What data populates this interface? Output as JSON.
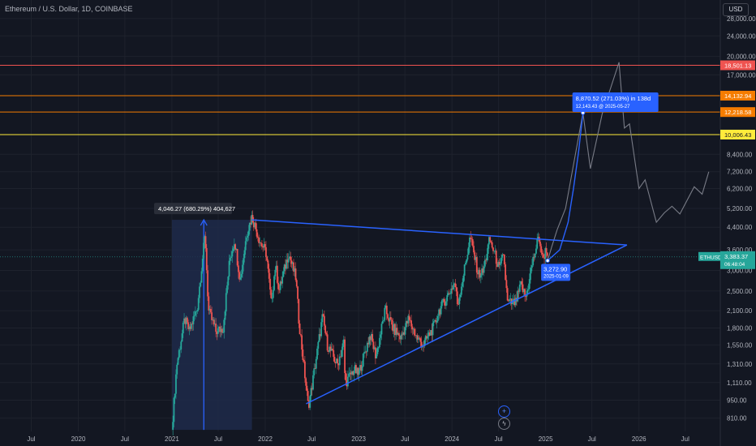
{
  "header": {
    "symbol_title": "Ethereum / U.S. Dollar, 1D, COINBASE",
    "currency": "USD"
  },
  "colors": {
    "background": "#131722",
    "candle_up": "#26a69a",
    "candle_down": "#ef5350",
    "trendline": "#2962ff",
    "projection": "#787b86",
    "range_fill": "#1e2a4a",
    "level_red": "#ef5350",
    "level_orange": "#f57c00",
    "level_yellow": "#ffeb3b"
  },
  "chart_data": {
    "type": "line",
    "title": "Ethereum / U.S. Dollar, 1D, COINBASE",
    "y_scale": "log",
    "ylim": [
      720,
      33000
    ],
    "xlim": [
      "2019-03-01",
      "2026-11-15"
    ],
    "y_ticks": [
      28000,
      24000,
      20000,
      17000,
      8400,
      7200,
      6200,
      5200,
      4400,
      3600,
      3000,
      2500,
      2100,
      1800,
      1550,
      1310,
      1110,
      950,
      810
    ],
    "x_ticks": [
      {
        "label": "Jul",
        "date": "2019-07-01"
      },
      {
        "label": "2020",
        "date": "2020-01-01"
      },
      {
        "label": "Jul",
        "date": "2020-07-01"
      },
      {
        "label": "2021",
        "date": "2021-01-01"
      },
      {
        "label": "Jul",
        "date": "2021-07-01"
      },
      {
        "label": "2022",
        "date": "2022-01-01"
      },
      {
        "label": "Jul",
        "date": "2022-07-01"
      },
      {
        "label": "2023",
        "date": "2023-01-01"
      },
      {
        "label": "Jul",
        "date": "2023-07-01"
      },
      {
        "label": "2024",
        "date": "2024-01-01"
      },
      {
        "label": "Jul",
        "date": "2024-07-01"
      },
      {
        "label": "2025",
        "date": "2025-01-01"
      },
      {
        "label": "Jul",
        "date": "2025-07-01"
      },
      {
        "label": "2026",
        "date": "2026-01-01"
      },
      {
        "label": "Jul",
        "date": "2026-07-01"
      }
    ],
    "price_series": {
      "name": "ETHUSD",
      "points": [
        [
          "2021-01-01",
          730
        ],
        [
          "2021-01-20",
          1300
        ],
        [
          "2021-02-20",
          1950
        ],
        [
          "2021-03-10",
          1750
        ],
        [
          "2021-04-10",
          2150
        ],
        [
          "2021-05-11",
          4150
        ],
        [
          "2021-05-24",
          2100
        ],
        [
          "2021-06-22",
          1750
        ],
        [
          "2021-07-20",
          1800
        ],
        [
          "2021-08-15",
          3300
        ],
        [
          "2021-09-03",
          3950
        ],
        [
          "2021-09-25",
          2750
        ],
        [
          "2021-10-20",
          4150
        ],
        [
          "2021-11-10",
          4850
        ],
        [
          "2021-12-10",
          3900
        ],
        [
          "2022-01-05",
          3500
        ],
        [
          "2022-01-24",
          2250
        ],
        [
          "2022-02-10",
          3150
        ],
        [
          "2022-02-24",
          2500
        ],
        [
          "2022-04-02",
          3500
        ],
        [
          "2022-05-01",
          2800
        ],
        [
          "2022-05-12",
          1950
        ],
        [
          "2022-06-18",
          900
        ],
        [
          "2022-07-01",
          1050
        ],
        [
          "2022-08-13",
          2000
        ],
        [
          "2022-09-01",
          1550
        ],
        [
          "2022-10-10",
          1300
        ],
        [
          "2022-11-05",
          1600
        ],
        [
          "2022-11-09",
          1100
        ],
        [
          "2022-12-15",
          1250
        ],
        [
          "2022-12-31",
          1190
        ],
        [
          "2023-02-15",
          1700
        ],
        [
          "2023-03-10",
          1400
        ],
        [
          "2023-04-15",
          2120
        ],
        [
          "2023-05-15",
          1800
        ],
        [
          "2023-06-15",
          1650
        ],
        [
          "2023-07-15",
          1950
        ],
        [
          "2023-08-17",
          1650
        ],
        [
          "2023-09-11",
          1550
        ],
        [
          "2023-10-25",
          1850
        ],
        [
          "2023-11-11",
          2100
        ],
        [
          "2023-12-10",
          2350
        ],
        [
          "2024-01-12",
          2700
        ],
        [
          "2024-01-23",
          2200
        ],
        [
          "2024-02-28",
          3400
        ],
        [
          "2024-03-12",
          4050
        ],
        [
          "2024-04-13",
          2900
        ],
        [
          "2024-05-01",
          2950
        ],
        [
          "2024-05-27",
          3950
        ],
        [
          "2024-06-15",
          3500
        ],
        [
          "2024-07-05",
          3000
        ],
        [
          "2024-07-20",
          3500
        ],
        [
          "2024-08-05",
          2250
        ],
        [
          "2024-09-06",
          2250
        ],
        [
          "2024-09-27",
          2650
        ],
        [
          "2024-10-15",
          2350
        ],
        [
          "2024-11-10",
          3200
        ],
        [
          "2024-12-06",
          4050
        ],
        [
          "2024-12-20",
          3300
        ],
        [
          "2025-01-06",
          3700
        ],
        [
          "2025-01-09",
          3272.9
        ]
      ]
    },
    "projection_path": [
      [
        "2025-01-09",
        3272.9
      ],
      [
        "2025-01-25",
        3700
      ],
      [
        "2025-02-15",
        4300
      ],
      [
        "2025-03-20",
        5200
      ],
      [
        "2025-05-27",
        12143.43
      ],
      [
        "2025-06-25",
        7400
      ],
      [
        "2025-08-10",
        12000
      ],
      [
        "2025-10-15",
        19000
      ],
      [
        "2025-11-05",
        10600
      ],
      [
        "2025-11-25",
        11000
      ],
      [
        "2026-01-01",
        6200
      ],
      [
        "2026-01-25",
        6700
      ],
      [
        "2026-03-10",
        4600
      ],
      [
        "2026-04-10",
        5000
      ],
      [
        "2026-05-10",
        5300
      ],
      [
        "2026-06-10",
        4950
      ],
      [
        "2026-08-05",
        6300
      ],
      [
        "2026-09-05",
        5900
      ],
      [
        "2026-10-01",
        7200
      ]
    ],
    "curve_projection": [
      [
        "2025-01-09",
        3272.9
      ],
      [
        "2025-02-25",
        3600
      ],
      [
        "2025-03-30",
        4600
      ],
      [
        "2025-04-20",
        6200
      ],
      [
        "2025-05-10",
        8600
      ],
      [
        "2025-05-27",
        12143.43
      ]
    ],
    "resistance_line": [
      [
        "2021-11-10",
        4700
      ],
      [
        "2025-11-15",
        3760
      ]
    ],
    "support_line": [
      [
        "2022-06-10",
        920
      ],
      [
        "2025-11-15",
        3760
      ]
    ],
    "range_box": {
      "from": "2021-01-01",
      "to": "2021-11-10",
      "low": 730,
      "high": 4700
    },
    "levels": [
      {
        "value": 18501.13,
        "label": "18,501.13",
        "color": "#ef5350"
      },
      {
        "value": 14132.94,
        "label": "14,132.94",
        "color": "#f57c00"
      },
      {
        "value": 12218.58,
        "label": "12,218.58",
        "color": "#f57c00"
      },
      {
        "value": 10006.43,
        "label": "10,006.43",
        "color": "#ffeb3b"
      }
    ],
    "current": {
      "value": 3383.37,
      "label": "3,383.37",
      "ticker": "ETHUSD",
      "countdown": "06:48:04"
    },
    "annotations": [
      {
        "text": "4,046.27 (680.29%) 404,627"
      },
      {
        "text": "8,870.52 (271.03%) in 138d",
        "subtext": "12,143.43 @ 2025-05-27"
      },
      {
        "text": "3,272.90",
        "subtext": "2025-01-09"
      }
    ],
    "event_icons": [
      "plus-circle",
      "lightning-circle"
    ]
  }
}
